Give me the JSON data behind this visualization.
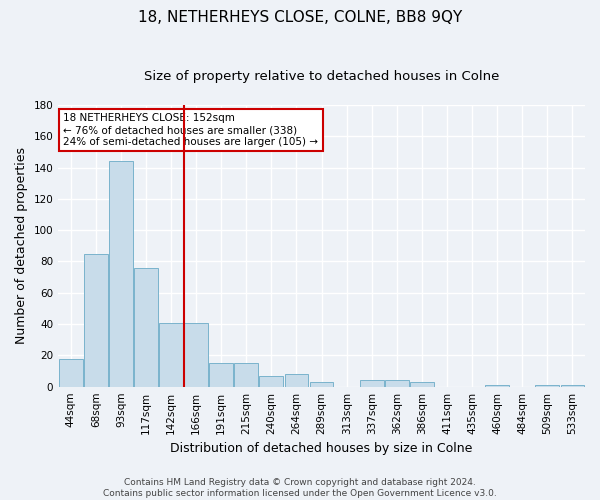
{
  "title": "18, NETHERHEYS CLOSE, COLNE, BB8 9QY",
  "subtitle": "Size of property relative to detached houses in Colne",
  "xlabel": "Distribution of detached houses by size in Colne",
  "ylabel": "Number of detached properties",
  "categories": [
    "44sqm",
    "68sqm",
    "93sqm",
    "117sqm",
    "142sqm",
    "166sqm",
    "191sqm",
    "215sqm",
    "240sqm",
    "264sqm",
    "289sqm",
    "313sqm",
    "337sqm",
    "362sqm",
    "386sqm",
    "411sqm",
    "435sqm",
    "460sqm",
    "484sqm",
    "509sqm",
    "533sqm"
  ],
  "values": [
    18,
    85,
    144,
    76,
    41,
    41,
    15,
    15,
    7,
    8,
    3,
    0,
    4,
    4,
    3,
    0,
    0,
    1,
    0,
    1,
    1
  ],
  "bar_color": "#c8dcea",
  "bar_edge_color": "#7ab3cc",
  "vline_x_index": 5,
  "vline_color": "#cc0000",
  "annotation_text": "18 NETHERHEYS CLOSE: 152sqm\n← 76% of detached houses are smaller (338)\n24% of semi-detached houses are larger (105) →",
  "annotation_box_color": "#ffffff",
  "annotation_box_edge_color": "#cc0000",
  "ylim": [
    0,
    180
  ],
  "yticks": [
    0,
    20,
    40,
    60,
    80,
    100,
    120,
    140,
    160,
    180
  ],
  "footer": "Contains HM Land Registry data © Crown copyright and database right 2024.\nContains public sector information licensed under the Open Government Licence v3.0.",
  "background_color": "#eef2f7",
  "grid_color": "#ffffff",
  "title_fontsize": 11,
  "subtitle_fontsize": 9.5,
  "axis_label_fontsize": 9,
  "tick_fontsize": 7.5,
  "annotation_fontsize": 7.5,
  "footer_fontsize": 6.5
}
